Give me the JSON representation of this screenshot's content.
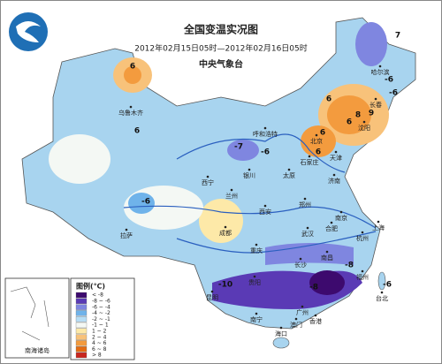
{
  "header": {
    "title": "全国变温实况图",
    "subtitle": "2012年02月15日05时—2012年02月16日05时",
    "agency": "中央气象台"
  },
  "legend": {
    "title": "图例(℃)",
    "items": [
      {
        "label": "< -8",
        "color": "#3d0a6e"
      },
      {
        "label": "-8 ~ -6",
        "color": "#5a3ab5"
      },
      {
        "label": "-6 ~ -4",
        "color": "#7f86e0"
      },
      {
        "label": "-4 ~ -2",
        "color": "#6fb3ea"
      },
      {
        "label": "-2 ~ -1",
        "color": "#b6ddf5"
      },
      {
        "label": "-1 ~ 1",
        "color": "#f4f8f4"
      },
      {
        "label": "1 ~ 2",
        "color": "#fde9a8"
      },
      {
        "label": "2 ~ 4",
        "color": "#f8c27a"
      },
      {
        "label": "4 ~ 6",
        "color": "#f39b3e"
      },
      {
        "label": "6 ~ 8",
        "color": "#e46c12"
      },
      {
        "label": "> 8",
        "color": "#c8261e"
      }
    ]
  },
  "cities": [
    "乌鲁木齐",
    "哈尔滨",
    "长春",
    "沈阳",
    "呼和浩特",
    "北京",
    "天津",
    "石家庄",
    "太原",
    "济南",
    "银川",
    "西宁",
    "兰州",
    "郑州",
    "西安",
    "拉萨",
    "成都",
    "武汉",
    "合肥",
    "南京",
    "上海",
    "杭州",
    "重庆",
    "长沙",
    "南昌",
    "贵阳",
    "福州",
    "台北",
    "昆明",
    "南宁",
    "广州",
    "香港",
    "澳门",
    "海口"
  ],
  "values": [
    "6",
    "6",
    "-6",
    "-7",
    "-6",
    "6",
    "9",
    "8",
    "6",
    "6",
    "-6",
    "-6",
    "-8",
    "-8",
    "-10",
    "7",
    "-6",
    "6"
  ],
  "inset_label": "南海诸岛"
}
